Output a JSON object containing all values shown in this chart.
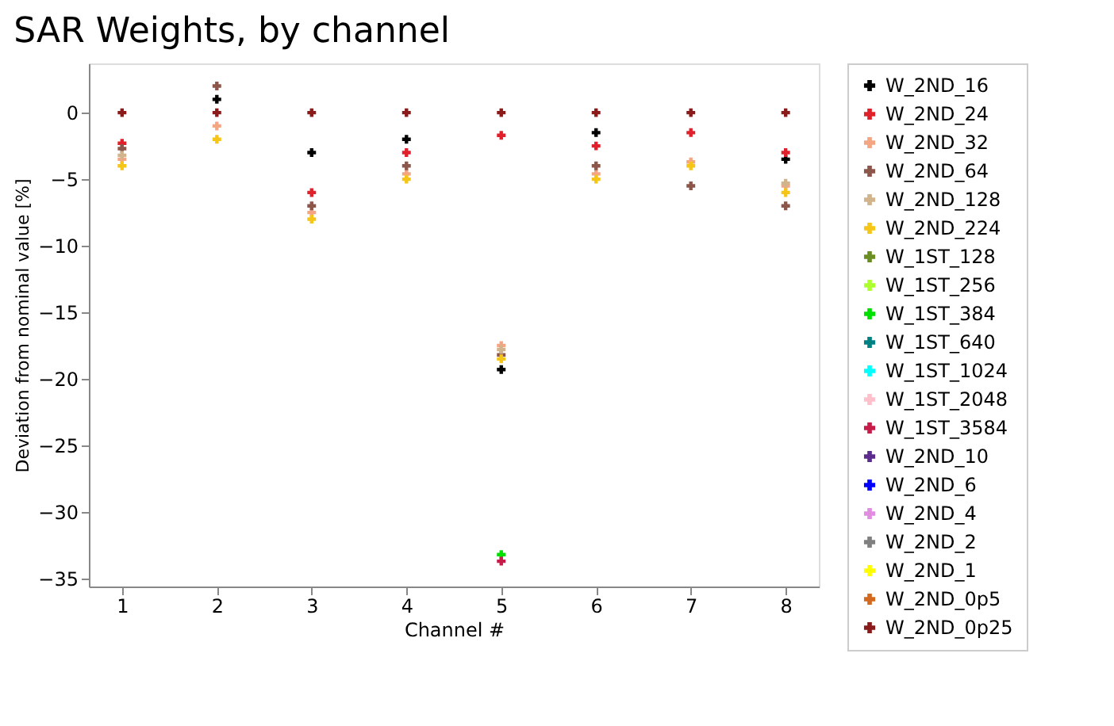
{
  "chart_data": {
    "type": "scatter",
    "title": "SAR Weights, by channel",
    "xlabel": "Channel #",
    "ylabel": "Deviation from nominal value [%]",
    "x": [
      1,
      2,
      3,
      4,
      5,
      6,
      7,
      8
    ],
    "xlim": [
      0.65,
      8.35
    ],
    "xticks": [
      1,
      2,
      3,
      4,
      5,
      6,
      7,
      8
    ],
    "ylim": [
      -35.6,
      3.7
    ],
    "yticks": [
      -35,
      -30,
      -25,
      -20,
      -15,
      -10,
      -5,
      0
    ],
    "grid": false,
    "legend": "right",
    "marker": "cross",
    "series": [
      {
        "name": "W_2ND_16",
        "color": "#000000",
        "values": [
          null,
          1,
          -3,
          -2,
          -19.3,
          -1.5,
          null,
          -3.5
        ]
      },
      {
        "name": "W_2ND_24",
        "color": "#e0202a",
        "values": [
          -2.3,
          null,
          -6,
          -3,
          -1.7,
          -2.5,
          -1.5,
          -3
        ]
      },
      {
        "name": "W_2ND_32",
        "color": "#f4a582",
        "values": [
          -3.5,
          -1,
          -7.5,
          -4.6,
          -17.5,
          -4.6,
          -3.7,
          -5.5
        ]
      },
      {
        "name": "W_2ND_64",
        "color": "#8c564b",
        "values": [
          -2.7,
          2,
          -7,
          -4,
          -18.2,
          -4,
          -5.5,
          -7
        ]
      },
      {
        "name": "W_2ND_128",
        "color": "#d2b48c",
        "values": [
          -3.2,
          null,
          null,
          null,
          -17.8,
          null,
          null,
          -5.3
        ]
      },
      {
        "name": "W_2ND_224",
        "color": "#f5c518",
        "values": [
          -4,
          -2,
          -8,
          -5,
          -18.5,
          -5,
          -4,
          -6
        ]
      },
      {
        "name": "W_1ST_128",
        "color": "#6b8e23",
        "values": [
          null,
          null,
          null,
          null,
          null,
          null,
          null,
          null
        ]
      },
      {
        "name": "W_1ST_256",
        "color": "#adff2f",
        "values": [
          null,
          null,
          null,
          null,
          null,
          null,
          null,
          null
        ]
      },
      {
        "name": "W_1ST_384",
        "color": "#00e000",
        "values": [
          null,
          null,
          null,
          null,
          -33.2,
          null,
          null,
          null
        ]
      },
      {
        "name": "W_1ST_640",
        "color": "#008080",
        "values": [
          null,
          null,
          null,
          null,
          null,
          null,
          null,
          null
        ]
      },
      {
        "name": "W_1ST_1024",
        "color": "#00ffff",
        "values": [
          null,
          null,
          null,
          null,
          null,
          null,
          null,
          null
        ]
      },
      {
        "name": "W_1ST_2048",
        "color": "#ffc0cb",
        "values": [
          null,
          null,
          null,
          null,
          null,
          null,
          null,
          null
        ]
      },
      {
        "name": "W_1ST_3584",
        "color": "#c71c4a",
        "values": [
          null,
          null,
          null,
          null,
          -33.7,
          null,
          null,
          null
        ]
      },
      {
        "name": "W_2ND_10",
        "color": "#5b2c8e",
        "values": [
          null,
          null,
          null,
          null,
          null,
          null,
          null,
          null
        ]
      },
      {
        "name": "W_2ND_6",
        "color": "#0000ff",
        "values": [
          null,
          null,
          null,
          null,
          null,
          null,
          null,
          null
        ]
      },
      {
        "name": "W_2ND_4",
        "color": "#e08ee0",
        "values": [
          null,
          null,
          null,
          null,
          null,
          null,
          null,
          null
        ]
      },
      {
        "name": "W_2ND_2",
        "color": "#808080",
        "values": [
          null,
          null,
          null,
          null,
          null,
          null,
          null,
          null
        ]
      },
      {
        "name": "W_2ND_1",
        "color": "#ffff00",
        "values": [
          null,
          null,
          null,
          null,
          null,
          null,
          null,
          null
        ]
      },
      {
        "name": "W_2ND_0p5",
        "color": "#d2691e",
        "values": [
          null,
          null,
          null,
          null,
          null,
          null,
          null,
          null
        ]
      },
      {
        "name": "W_2ND_0p25",
        "color": "#8b1a1a",
        "values": [
          0,
          0,
          0,
          0,
          0,
          0,
          0,
          0
        ]
      }
    ]
  }
}
